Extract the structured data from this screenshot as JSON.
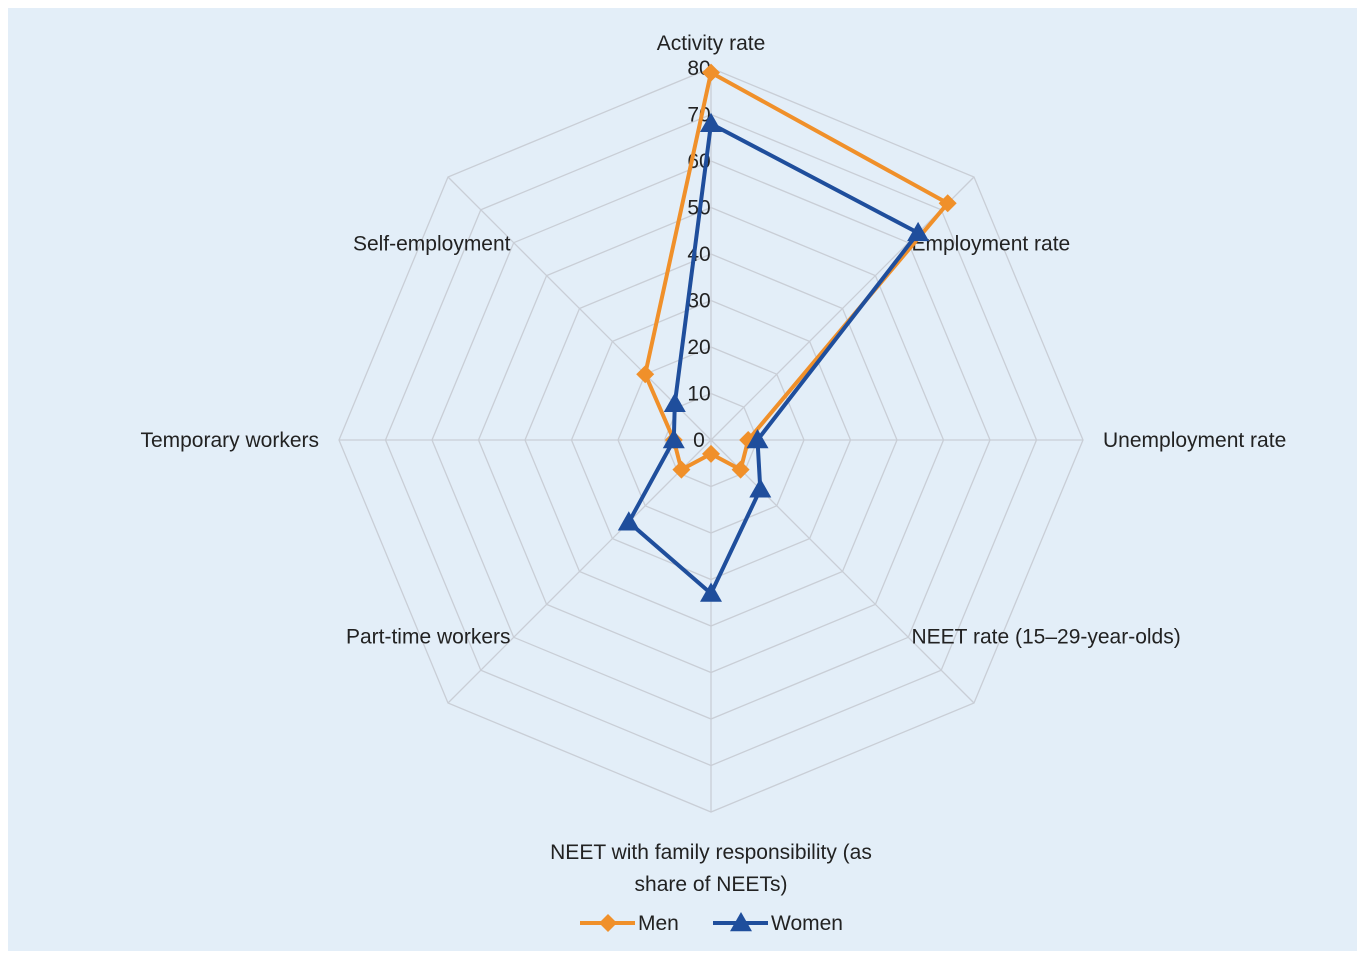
{
  "chart_data": {
    "type": "radar",
    "axes": [
      "Activity rate",
      "Employment rate",
      "Unemployment rate",
      "NEET rate (15–29-year-olds)",
      "NEET with family responsibility (as share of NEETs)",
      "Part-time workers",
      "Temporary workers",
      "Self-employment"
    ],
    "axis_label_lines": [
      [
        "Activity rate"
      ],
      [
        "Employment rate"
      ],
      [
        "Unemployment rate"
      ],
      [
        "NEET rate (15–29-year-olds)"
      ],
      [
        "NEET with family responsibility (as",
        "share of NEETs)"
      ],
      [
        "Part-time workers"
      ],
      [
        "Temporary workers"
      ],
      [
        "Self-employment"
      ]
    ],
    "r_ticks": [
      "0",
      "10",
      "20",
      "30",
      "40",
      "50",
      "60",
      "70",
      "80"
    ],
    "r_range": [
      0,
      80
    ],
    "series": [
      {
        "name": "Men",
        "values": [
          79,
          72,
          8,
          9,
          3,
          9,
          8,
          20
        ],
        "color": "#f0902a",
        "marker": "diamond"
      },
      {
        "name": "Women",
        "values": [
          68,
          63,
          10,
          15,
          33,
          25,
          8,
          11
        ],
        "color": "#1f4e9c",
        "marker": "triangle"
      }
    ],
    "legend_position": "bottom",
    "grid": true
  }
}
